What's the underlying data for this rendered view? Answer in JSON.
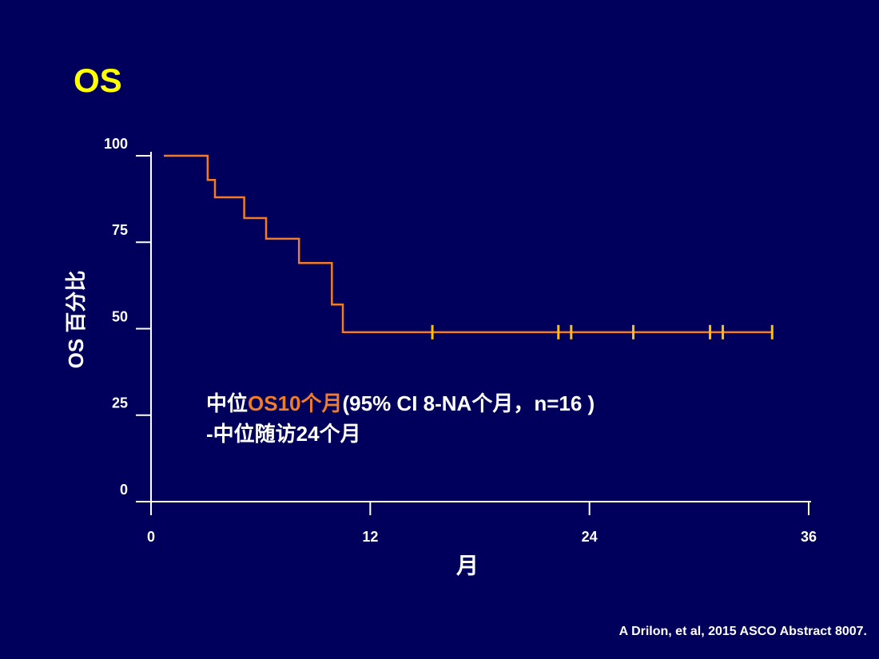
{
  "chart_data": {
    "type": "line",
    "title": "OS",
    "title_color": "#ffff00",
    "x_label": "月",
    "y_label": "OS 百分比",
    "xlim": [
      0,
      36
    ],
    "xticks": [
      0,
      12,
      24,
      36
    ],
    "ylim": [
      0,
      100
    ],
    "yticks": [
      0,
      25,
      50,
      75,
      100
    ],
    "series": [
      {
        "color": "#f07c2a",
        "marker": "none",
        "x": [
          0.7,
          3.1,
          3.1,
          3.5,
          3.5,
          5.1,
          5.1,
          6.3,
          6.3,
          8.1,
          8.1,
          9.9,
          9.9,
          10.5,
          10.5,
          34
        ],
        "values": [
          100,
          100,
          93,
          93,
          88,
          88,
          82,
          82,
          76,
          76,
          69,
          69,
          57,
          57,
          49,
          49
        ]
      },
      {
        "color": "#ffc000",
        "marker": "tick",
        "x": [
          15.4,
          22.3,
          23,
          26.4,
          30.6,
          31.3,
          34
        ],
        "values": [
          49,
          49,
          49,
          49,
          49,
          49,
          49
        ]
      }
    ],
    "annotation": [
      [
        {
          "text": "中位",
          "color": "#ffffff"
        },
        {
          "text": "OS10个月",
          "color": "#f07c2a"
        },
        {
          "text": "(95% CI 8-NA个月，n=16 )",
          "color": "#ffffff"
        }
      ],
      [
        {
          "text": "-中位随访24个月",
          "color": "#ffffff"
        }
      ]
    ],
    "source": "A Drilon, et al, 2015 ASCO Abstract 8007."
  }
}
